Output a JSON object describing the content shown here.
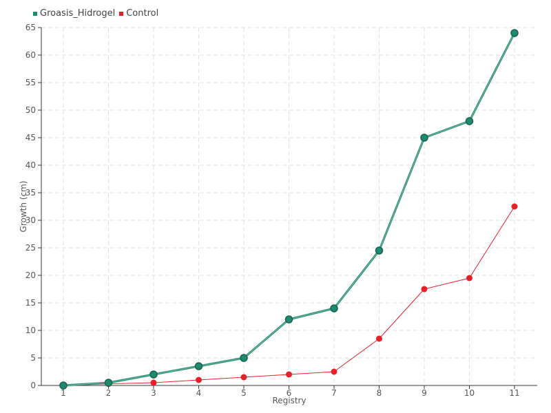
{
  "chart_data": {
    "type": "line",
    "title": "",
    "xlabel": "Registry",
    "ylabel": "Growth (cm)",
    "categories": [
      "1",
      "2",
      "3",
      "4",
      "5",
      "6",
      "7",
      "8",
      "9",
      "10",
      "11"
    ],
    "ylim": [
      0,
      65
    ],
    "yticks": [
      0,
      5,
      10,
      15,
      20,
      25,
      30,
      35,
      40,
      45,
      50,
      55,
      60,
      65
    ],
    "grid": true,
    "legend_position": "top-left",
    "series": [
      {
        "name": "Groasis_Hidrogel",
        "color": "#1f8a70",
        "values": [
          0,
          0.5,
          2,
          3.5,
          5,
          12,
          14,
          24.5,
          45,
          48,
          64
        ]
      },
      {
        "name": "Control",
        "color": "#e8202a",
        "values": [
          0,
          0.3,
          0.5,
          1,
          1.5,
          2,
          2.5,
          8.5,
          17.5,
          19.5,
          32.5
        ]
      }
    ]
  }
}
